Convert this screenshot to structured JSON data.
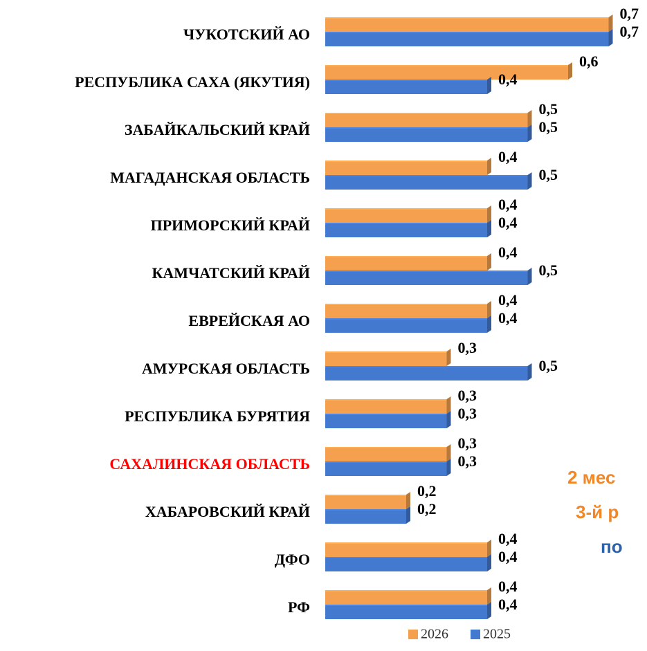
{
  "chart_data": {
    "type": "hbar",
    "categories": [
      "ЧУКОТСКИЙ АО",
      "РЕСПУБЛИКА САХА (ЯКУТИЯ)",
      "ЗАБАЙКАЛЬСКИЙ КРАЙ",
      "МАГАДАНСКАЯ ОБЛАСТЬ",
      "ПРИМОРСКИЙ КРАЙ",
      "КАМЧАТСКИЙ КРАЙ",
      "ЕВРЕЙСКАЯ АО",
      "АМУРСКАЯ ОБЛАСТЬ",
      "РЕСПУБЛИКА БУРЯТИЯ",
      "САХАЛИНСКАЯ ОБЛАСТЬ",
      "ХАБАРОВСКИЙ КРАЙ",
      "ДФО",
      "РФ"
    ],
    "category_colors": [
      "#000000",
      "#000000",
      "#000000",
      "#000000",
      "#000000",
      "#000000",
      "#000000",
      "#000000",
      "#000000",
      "#ff0000",
      "#000000",
      "#000000",
      "#000000"
    ],
    "series": [
      {
        "name": "2026",
        "color": "#f4a04e",
        "values": [
          0.7,
          0.6,
          0.5,
          0.4,
          0.4,
          0.4,
          0.4,
          0.3,
          0.3,
          0.3,
          0.2,
          0.4,
          0.4
        ],
        "value_labels": [
          "0,7",
          "0,6",
          "0,5",
          "0,4",
          "0,4",
          "0,4",
          "0,4",
          "0,3",
          "0,3",
          "0,3",
          "0,2",
          "0,4",
          "0,4"
        ]
      },
      {
        "name": "2025",
        "color": "#4479d0",
        "values": [
          0.7,
          0.4,
          0.5,
          0.5,
          0.4,
          0.5,
          0.4,
          0.5,
          0.3,
          0.3,
          0.2,
          0.4,
          0.4
        ],
        "value_labels": [
          "0,7",
          "0,4",
          "0,5",
          "0,5",
          "0,4",
          "0,5",
          "0,4",
          "0,5",
          "0,3",
          "0,3",
          "0,2",
          "0,4",
          "0,4"
        ]
      }
    ],
    "xlim": [
      0,
      0.8
    ],
    "legend": "bottom",
    "annotations": [
      {
        "text": "2 мес",
        "color": "#f0882a"
      },
      {
        "text": "3-й р",
        "color": "#f0882a"
      },
      {
        "text": "по",
        "color": "#2e62a8"
      }
    ]
  }
}
